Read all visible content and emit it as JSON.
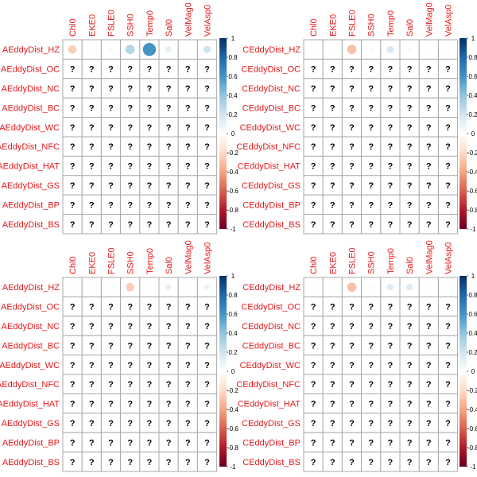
{
  "chart_data": [
    {
      "type": "heatmap",
      "columns": [
        "Chl0",
        "EKE0",
        "FSLE0",
        "SSH0",
        "Temp0",
        "Sal0",
        "VelMag0",
        "VelAsp0"
      ],
      "rows": [
        "AEddyDist_HZ",
        "AEddyDist_OC",
        "AEddyDist_NC",
        "AEddyDist_BC",
        "AEddyDist_WC",
        "AEddyDist_NFC",
        "AEddyDist_HAT",
        "AEddyDist_GS",
        "AEddyDist_BP",
        "AEddyDist_BS"
      ],
      "first_row_values": [
        -0.25,
        0.02,
        0.05,
        0.3,
        0.6,
        0.12,
        0.02,
        0.2
      ],
      "missing_label": "?",
      "colorbar_ticks": [
        "1",
        "0.8",
        "0.6",
        "0.4",
        "0.2",
        "0",
        "-0.2",
        "-0.4",
        "-0.6",
        "-0.8",
        "-1"
      ],
      "clim": [
        -1,
        1
      ]
    },
    {
      "type": "heatmap",
      "columns": [
        "Chl0",
        "EKE0",
        "FSLE0",
        "SSH0",
        "Temp0",
        "Sal0",
        "VelMag0",
        "VelAsp0"
      ],
      "rows": [
        "CEddyDist_HZ",
        "CEddyDist_OC",
        "CEddyDist_NC",
        "CEddyDist_BC",
        "CEddyDist_WC",
        "CEddyDist_NFC",
        "CEddyDist_HAT",
        "CEddyDist_GS",
        "CEddyDist_BP",
        "CEddyDist_BS"
      ],
      "first_row_values": [
        0.02,
        0.02,
        -0.3,
        0.04,
        0.18,
        0.06,
        0.03,
        0.03
      ],
      "missing_label": "?",
      "colorbar_ticks": [
        "1",
        "0.8",
        "0.6",
        "0.4",
        "0.2",
        "0",
        "-0.2",
        "-0.4",
        "-0.6",
        "-0.8",
        "-1"
      ],
      "clim": [
        -1,
        1
      ]
    },
    {
      "type": "heatmap",
      "columns": [
        "Chl0",
        "EKE0",
        "FSLE0",
        "SSH0",
        "Temp0",
        "Sal0",
        "VelMag0",
        "VelAsp0"
      ],
      "rows": [
        "AEddyDist_HZ",
        "AEddyDist_OC",
        "AEddyDist_NC",
        "AEddyDist_BC",
        "AEddyDist_WC",
        "AEddyDist_NFC",
        "AEddyDist_HAT",
        "AEddyDist_GS",
        "AEddyDist_BP",
        "AEddyDist_BS"
      ],
      "first_row_values": [
        0.02,
        0.03,
        0.03,
        -0.25,
        0.03,
        0.12,
        0.02,
        0.1
      ],
      "missing_label": "?",
      "colorbar_ticks": [
        "1",
        "0.8",
        "0.6",
        "0.4",
        "0.2",
        "0",
        "-0.2",
        "-0.4",
        "-0.6",
        "-0.8",
        "-1"
      ],
      "clim": [
        -1,
        1
      ]
    },
    {
      "type": "heatmap",
      "columns": [
        "Chl0",
        "EKE0",
        "FSLE0",
        "SSH0",
        "Temp0",
        "Sal0",
        "VelMag0",
        "VelAsp0"
      ],
      "rows": [
        "CEddyDist_HZ",
        "CEddyDist_OC",
        "CEddyDist_NC",
        "CEddyDist_BC",
        "CEddyDist_WC",
        "CEddyDist_NFC",
        "CEddyDist_HAT",
        "CEddyDist_GS",
        "CEddyDist_BP",
        "CEddyDist_BS"
      ],
      "first_row_values": [
        0.02,
        0.02,
        -0.3,
        0.04,
        0.15,
        0.15,
        0.03,
        0.03
      ],
      "missing_label": "?",
      "colorbar_ticks": [
        "1",
        "0.8",
        "0.6",
        "0.4",
        "0.2",
        "0",
        "-0.2",
        "-0.4",
        "-0.6",
        "-0.8",
        "-1"
      ],
      "clim": [
        -1,
        1
      ]
    }
  ],
  "colors": {
    "label_red": "#e41a1c",
    "grid": "#aaaaaa",
    "colorscale": [
      "#67001f",
      "#b2182b",
      "#d6604d",
      "#f4a582",
      "#fddbc7",
      "#ffffff",
      "#d1e5f0",
      "#92c5de",
      "#4393c3",
      "#2166ac",
      "#053061"
    ]
  }
}
